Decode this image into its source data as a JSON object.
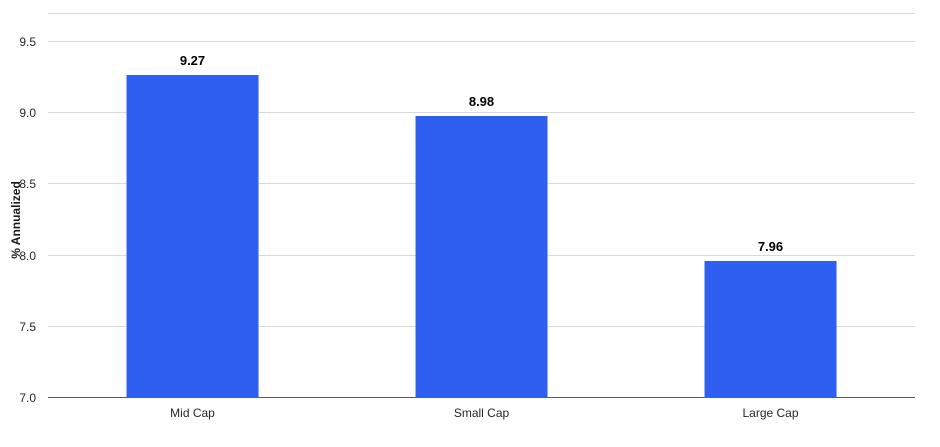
{
  "chart_data": {
    "type": "bar",
    "title": "",
    "categories": [
      "Mid Cap",
      "Small Cap",
      "Large Cap"
    ],
    "values": [
      9.27,
      8.98,
      7.96
    ],
    "value_labels": [
      "9.27",
      "8.98",
      "7.96"
    ],
    "xlabel": "",
    "ylabel": "% Annualized",
    "ylim": [
      7.0,
      9.5
    ],
    "yticks": [
      7.0,
      7.5,
      8.0,
      8.5,
      9.0,
      9.5
    ],
    "grid": "horizontal",
    "legend": "none",
    "bar_color": "#2e5ff0",
    "gridline_color": "#d9d9d9",
    "axis_line_color": "#595959",
    "text_color": "#262626"
  }
}
